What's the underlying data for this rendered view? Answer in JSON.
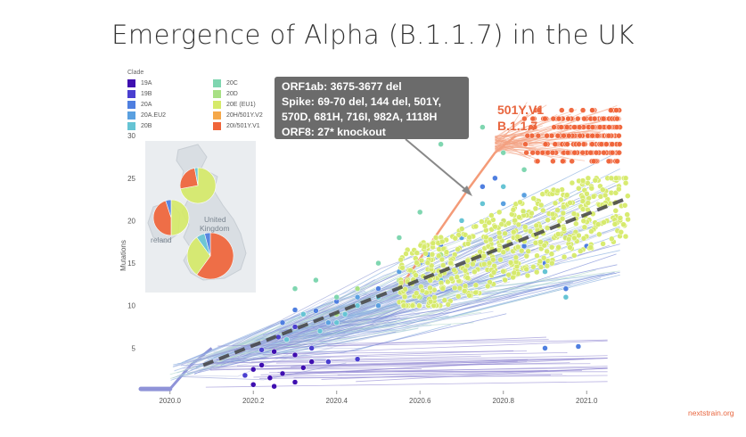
{
  "slide": {
    "title": "Emergence of Alpha (B.1.1.7) in the UK",
    "credit": "nextstrain.org"
  },
  "legend": {
    "title": "Clade",
    "items": [
      {
        "label": "19A",
        "color": "#3f0fb0"
      },
      {
        "label": "19B",
        "color": "#4a3fd0"
      },
      {
        "label": "20A",
        "color": "#4f7fe0"
      },
      {
        "label": "20A.EU2",
        "color": "#5aa0e0"
      },
      {
        "label": "20B",
        "color": "#66c4d4"
      },
      {
        "label": "20C",
        "color": "#7fd6b0"
      },
      {
        "label": "20D",
        "color": "#a8e085"
      },
      {
        "label": "20E (EU1)",
        "color": "#d6ea6a"
      },
      {
        "label": "20H/501Y.V2",
        "color": "#f5a84a"
      },
      {
        "label": "20I/501Y.V1",
        "color": "#f0653a"
      }
    ]
  },
  "callout": {
    "lines": [
      "ORF1ab: 3675-3677 del",
      "Spike: 69-70 del, 144 del, 501Y,",
      "570D, 681H, 716I, 982A, 1118H",
      "ORF8: 27* knockout"
    ]
  },
  "annotation": {
    "line1": "501Y.V1",
    "line2": "B.1.1.7",
    "color": "#e8663f"
  },
  "map": {
    "labels": [
      "United",
      "Kingdom",
      "reland"
    ],
    "pies": [
      {
        "name": "north",
        "slices": [
          {
            "clade": "20E (EU1)",
            "value": 0.72
          },
          {
            "clade": "20I/501Y.V1",
            "value": 0.25
          },
          {
            "clade": "20B",
            "value": 0.03
          }
        ]
      },
      {
        "name": "ireland",
        "slices": [
          {
            "clade": "20E (EU1)",
            "value": 0.5
          },
          {
            "clade": "20I/501Y.V1",
            "value": 0.45
          },
          {
            "clade": "20A",
            "value": 0.05
          }
        ]
      },
      {
        "name": "england",
        "slices": [
          {
            "clade": "20I/501Y.V1",
            "value": 0.6
          },
          {
            "clade": "20E (EU1)",
            "value": 0.3
          },
          {
            "clade": "20B",
            "value": 0.06
          },
          {
            "clade": "20A",
            "value": 0.04
          }
        ]
      }
    ]
  },
  "chart_data": {
    "type": "scatter",
    "title": "Emergence of Alpha (B.1.1.7) in the UK",
    "xlabel": "",
    "ylabel": "Mutations",
    "xlim": [
      2019.93,
      2021.1
    ],
    "ylim": [
      0,
      36
    ],
    "xticks": [
      2020.0,
      2020.2,
      2020.4,
      2020.6,
      2020.8,
      2021.0
    ],
    "xtick_labels": [
      "2020.0",
      "2020.2",
      "2020.4",
      "2020.6",
      "2020.8",
      "2021.0"
    ],
    "yticks": [
      5,
      10,
      15,
      20,
      25,
      30
    ],
    "clock_rate_line": {
      "x": [
        2020.08,
        2021.09
      ],
      "y": [
        3.0,
        22.5
      ]
    },
    "series": [
      {
        "name": "19A",
        "color": "#3f0fb0",
        "points": [
          [
            2020.2,
            2.5
          ],
          [
            2020.22,
            3.0
          ],
          [
            2020.24,
            1.5
          ],
          [
            2020.25,
            0.5
          ],
          [
            2020.2,
            0.7
          ],
          [
            2020.27,
            2.0
          ],
          [
            2020.3,
            1.0
          ],
          [
            2020.32,
            2.7
          ],
          [
            2020.25,
            4.6
          ],
          [
            2020.3,
            4.2
          ],
          [
            2020.34,
            3.4
          ]
        ]
      },
      {
        "name": "19B",
        "color": "#4a3fd0",
        "points": [
          [
            2020.18,
            1.8
          ],
          [
            2020.22,
            4.8
          ],
          [
            2020.26,
            6.3
          ],
          [
            2020.3,
            7.5
          ],
          [
            2020.34,
            5.0
          ],
          [
            2020.38,
            3.4
          ],
          [
            2020.45,
            3.7
          ]
        ]
      },
      {
        "name": "20A",
        "color": "#4f7fe0",
        "points": [
          [
            2020.27,
            8.0
          ],
          [
            2020.3,
            9.5
          ],
          [
            2020.32,
            9.0
          ],
          [
            2020.35,
            9.4
          ],
          [
            2020.4,
            10.5
          ],
          [
            2020.5,
            12.0
          ],
          [
            2020.55,
            13.0
          ],
          [
            2020.6,
            15.0
          ],
          [
            2020.65,
            17.0
          ],
          [
            2020.7,
            19.0
          ],
          [
            2020.75,
            24.0
          ],
          [
            2020.78,
            25.0
          ],
          [
            2020.8,
            20.0
          ],
          [
            2020.85,
            17.0
          ],
          [
            2020.9,
            15.0
          ],
          [
            2020.95,
            18.0
          ],
          [
            2021.0,
            17.0
          ],
          [
            2020.95,
            12.0
          ],
          [
            2020.9,
            5.0
          ],
          [
            2020.98,
            5.2
          ]
        ]
      },
      {
        "name": "20A.EU2",
        "color": "#5aa0e0",
        "points": [
          [
            2020.38,
            8.0
          ],
          [
            2020.45,
            11.0
          ],
          [
            2020.5,
            10.0
          ],
          [
            2020.55,
            14.0
          ],
          [
            2020.62,
            16.0
          ],
          [
            2020.7,
            18.0
          ],
          [
            2020.8,
            22.0
          ],
          [
            2020.85,
            23.0
          ]
        ]
      },
      {
        "name": "20B",
        "color": "#66c4d4",
        "points": [
          [
            2020.28,
            6.0
          ],
          [
            2020.32,
            9.0
          ],
          [
            2020.36,
            7.0
          ],
          [
            2020.4,
            8.0
          ],
          [
            2020.42,
            9.0
          ],
          [
            2020.45,
            10.0
          ],
          [
            2020.5,
            11.0
          ],
          [
            2020.55,
            12.0
          ],
          [
            2020.58,
            14.0
          ],
          [
            2020.6,
            10.0
          ],
          [
            2020.65,
            13.0
          ],
          [
            2020.7,
            20.0
          ],
          [
            2020.75,
            22.0
          ],
          [
            2020.8,
            24.0
          ],
          [
            2020.85,
            21.0
          ],
          [
            2020.9,
            14.0
          ],
          [
            2020.95,
            11.0
          ]
        ]
      },
      {
        "name": "20C",
        "color": "#7fd6b0",
        "points": [
          [
            2020.3,
            12.0
          ],
          [
            2020.35,
            13.0
          ],
          [
            2020.4,
            11.0
          ],
          [
            2020.5,
            15.0
          ],
          [
            2020.55,
            18.0
          ],
          [
            2020.6,
            21.0
          ],
          [
            2020.65,
            29.0
          ],
          [
            2020.75,
            31.0
          ],
          [
            2020.8,
            28.0
          ],
          [
            2020.85,
            26.0
          ]
        ]
      },
      {
        "name": "20D",
        "color": "#a8e085",
        "points": [
          [
            2020.4,
            9.0
          ],
          [
            2020.45,
            12.0
          ],
          [
            2020.55,
            13.0
          ],
          [
            2020.6,
            11.0
          ],
          [
            2020.65,
            16.0
          ]
        ]
      },
      {
        "name": "20E (EU1)",
        "color": "#d6ea6a",
        "cluster": {
          "x": [
            2020.55,
            2021.1
          ],
          "y": [
            10,
            25
          ],
          "count": 520
        }
      },
      {
        "name": "20I/501Y.V1",
        "color": "#f0653a",
        "cluster": {
          "x": [
            2020.83,
            2021.08
          ],
          "y": [
            27,
            33
          ],
          "count": 260
        }
      }
    ]
  }
}
